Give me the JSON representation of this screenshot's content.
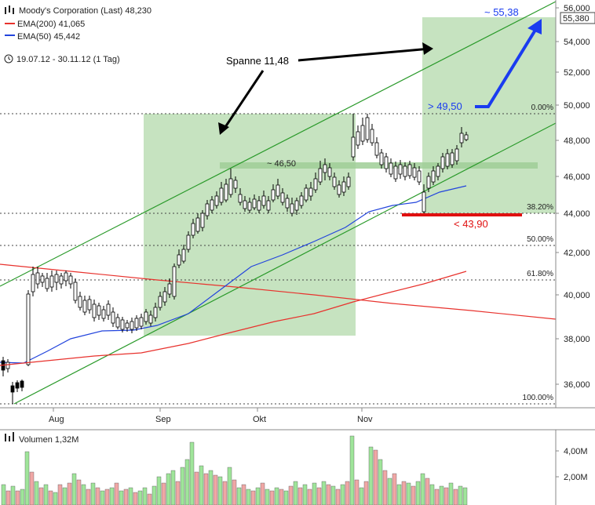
{
  "header": {
    "title": "Moody's Corporation (Last) 48,230",
    "legend": [
      {
        "label": "EMA(200) 41,065",
        "color": "#e8322d"
      },
      {
        "label": "EMA(50) 45,442",
        "color": "#2244dd"
      }
    ],
    "period": "19.07.12 - 30.11.12 (1 Tag)"
  },
  "volume": {
    "label": "Volumen 1,32M",
    "ticks": [
      "4,00M",
      "2,00M"
    ]
  },
  "chart_data": {
    "type": "candlestick",
    "price_axis": {
      "ticks": [
        "56,000",
        "54,000",
        "52,000",
        "50,000",
        "48,000",
        "46,000",
        "44,000",
        "42,000",
        "40,000",
        "38,000",
        "36,000"
      ],
      "last_value": "55,380"
    },
    "x_ticks": [
      "Aug",
      "Sep",
      "Okt",
      "Nov"
    ],
    "fib_levels": [
      {
        "label": "0.00%",
        "value": 49.5
      },
      {
        "label": "38.20%",
        "value": 44.1
      },
      {
        "label": "50.00%",
        "value": 42.3
      },
      {
        "label": "61.80%",
        "value": 40.6
      },
      {
        "label": "100.00%",
        "value": 35.5
      }
    ],
    "annotations": {
      "span_label": "Spanne 11,48",
      "mid_label": "~ 46,50",
      "support_label": "< 43,90",
      "breakout_label": "> 49,50",
      "target_label": "~ 55,38"
    },
    "colors": {
      "zone": "#c6e3c0",
      "channel": "#2a9a2a",
      "ema200": "#e8322d",
      "ema50": "#2244dd",
      "volume_up": "#9fe59a",
      "volume_down": "#f0a7a5",
      "target_arrow": "#1a3cf0",
      "support_bar": "#e01010"
    }
  }
}
